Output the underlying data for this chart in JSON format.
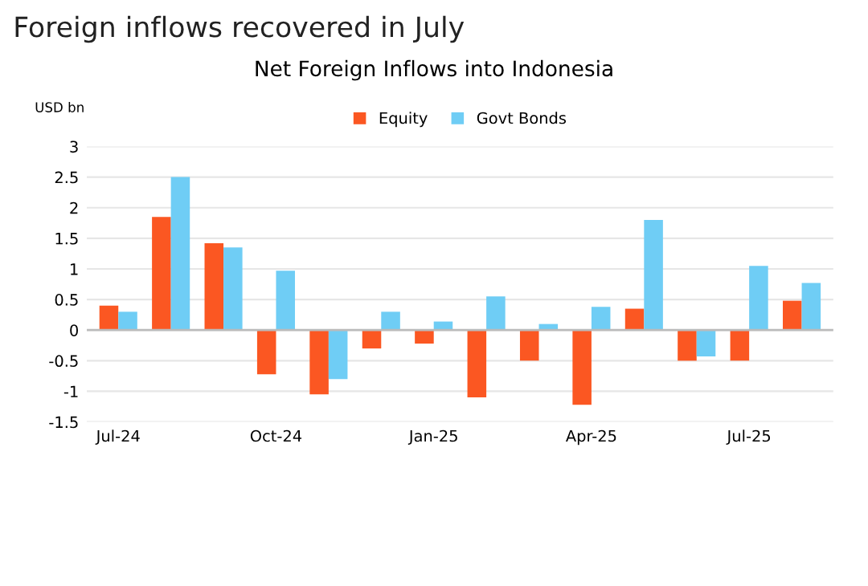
{
  "chart_data": {
    "type": "bar",
    "title": "Foreign inflows recovered in July",
    "subtitle": "Net Foreign Inflows into Indonesia",
    "ylabel": "USD bn",
    "categories": [
      "Jul-24",
      null,
      null,
      "Oct-24",
      null,
      null,
      "Jan-25",
      null,
      null,
      "Apr-25",
      null,
      null,
      "Jul-25",
      null
    ],
    "series": [
      {
        "name": "Equity",
        "color": "#fb5722",
        "values": [
          0.4,
          1.85,
          1.42,
          -0.72,
          -1.05,
          -0.3,
          -0.22,
          -1.1,
          -0.5,
          -1.22,
          0.35,
          -0.5,
          -0.5,
          0.48
        ]
      },
      {
        "name": "Govt Bonds",
        "color": "#6fcdf5",
        "values": [
          0.3,
          2.5,
          1.35,
          0.97,
          -0.8,
          0.3,
          0.14,
          0.55,
          0.1,
          0.38,
          1.8,
          -0.43,
          1.05,
          0.77
        ]
      }
    ],
    "ylim": [
      -1.5,
      3
    ],
    "yticks": [
      -1.5,
      -1,
      -0.5,
      0,
      0.5,
      1,
      1.5,
      2,
      2.5,
      3
    ],
    "grid": "y",
    "legend": "top"
  }
}
